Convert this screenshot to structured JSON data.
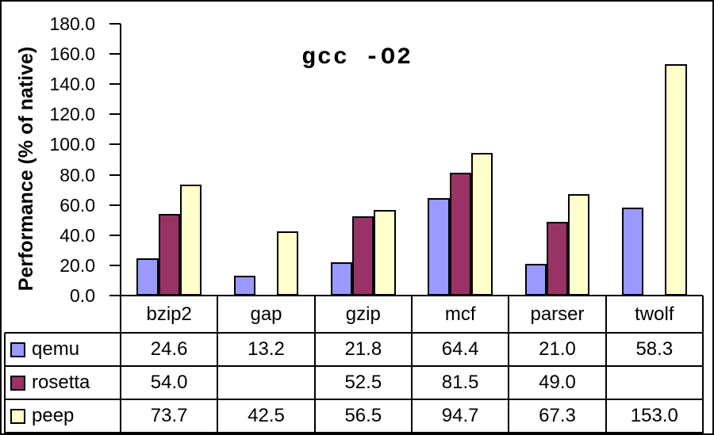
{
  "chart_data": {
    "type": "bar",
    "title": "gcc -O2",
    "ylabel": "Performance (% of native)",
    "xlabel": "",
    "categories": [
      "bzip2",
      "gap",
      "gzip",
      "mcf",
      "parser",
      "twolf"
    ],
    "series": [
      {
        "name": "qemu",
        "color": "#9999FF",
        "values": [
          24.6,
          13.2,
          21.8,
          64.4,
          21.0,
          58.3
        ]
      },
      {
        "name": "rosetta",
        "color": "#993366",
        "values": [
          54.0,
          null,
          52.5,
          81.5,
          49.0,
          null
        ]
      },
      {
        "name": "peep",
        "color": "#FFFFCC",
        "values": [
          73.7,
          42.5,
          56.5,
          94.7,
          67.3,
          153.0
        ]
      }
    ],
    "ylim": [
      0,
      180
    ],
    "y_tick_step": 20,
    "y_ticks": [
      "180.0",
      "160.0",
      "140.0",
      "120.0",
      "100.0",
      "80.0",
      "60.0",
      "40.0",
      "20.0",
      "0.0"
    ],
    "grid": false,
    "legend_position": "left-of-data-table",
    "data_table_shown": true,
    "colors": {
      "background": "#FFFFFF",
      "axis_and_table_lines": "#000000",
      "text": "#000000",
      "bar_outline": "#000000"
    }
  }
}
